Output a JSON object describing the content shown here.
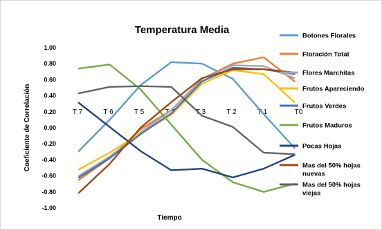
{
  "chart_data": {
    "type": "line",
    "title": "Temperatura Media",
    "xlabel": "Tiempo",
    "ylabel": "Coeficiente de Correlación",
    "ylim": [
      -1.0,
      1.0
    ],
    "yticks": [
      "1.00",
      "0.80",
      "0.60",
      "0.40",
      "0.20",
      "0.00",
      "-0.20",
      "-0.40",
      "-0.60",
      "-0.80",
      "-1.00"
    ],
    "categories": [
      "T 7",
      "T 6",
      "T 5",
      "T 4",
      "T 3",
      "T 2",
      "T 1",
      "T0"
    ],
    "grid": false,
    "legend_position": "right",
    "series": [
      {
        "name": "Botones Florales",
        "color": "#5B9BD5",
        "values": [
          -0.29,
          0.1,
          0.53,
          0.82,
          0.8,
          0.61,
          0.17,
          -0.25
        ]
      },
      {
        "name": "Floración Total",
        "color": "#ED7D31",
        "values": [
          -0.65,
          -0.38,
          -0.02,
          0.22,
          0.61,
          0.8,
          0.88,
          0.58
        ]
      },
      {
        "name": "Flores Marchitas",
        "color": "#A5A5A5",
        "values": [
          -0.6,
          -0.36,
          -0.06,
          0.22,
          0.61,
          0.78,
          0.77,
          0.62
        ]
      },
      {
        "name": "Frutos Apareciendo",
        "color": "#FFC000",
        "values": [
          -0.52,
          -0.31,
          -0.07,
          0.16,
          0.55,
          0.72,
          0.67,
          0.32
        ]
      },
      {
        "name": "Frutos Verdes",
        "color": "#4472C4",
        "values": [
          -0.62,
          -0.38,
          -0.08,
          0.18,
          0.58,
          0.75,
          0.73,
          0.67
        ]
      },
      {
        "name": "Frutos Maduros",
        "color": "#70AD47",
        "values": [
          0.74,
          0.79,
          0.48,
          0.04,
          -0.4,
          -0.68,
          -0.8,
          -0.7
        ]
      },
      {
        "name": "Pocas Hojas",
        "color": "#264478",
        "values": [
          0.31,
          0.01,
          -0.29,
          -0.53,
          -0.51,
          -0.62,
          -0.51,
          -0.34
        ]
      },
      {
        "name": "Mas del 50% hojas nuevas",
        "color": "#9E480E",
        "values": [
          -0.81,
          -0.45,
          0.0,
          0.32,
          0.62,
          0.73,
          0.73,
          0.69
        ]
      },
      {
        "name": "Mas del 50% hojas viejas",
        "color": "#636363",
        "values": [
          0.43,
          0.51,
          0.52,
          0.51,
          0.15,
          0.01,
          -0.31,
          -0.33
        ]
      }
    ]
  }
}
